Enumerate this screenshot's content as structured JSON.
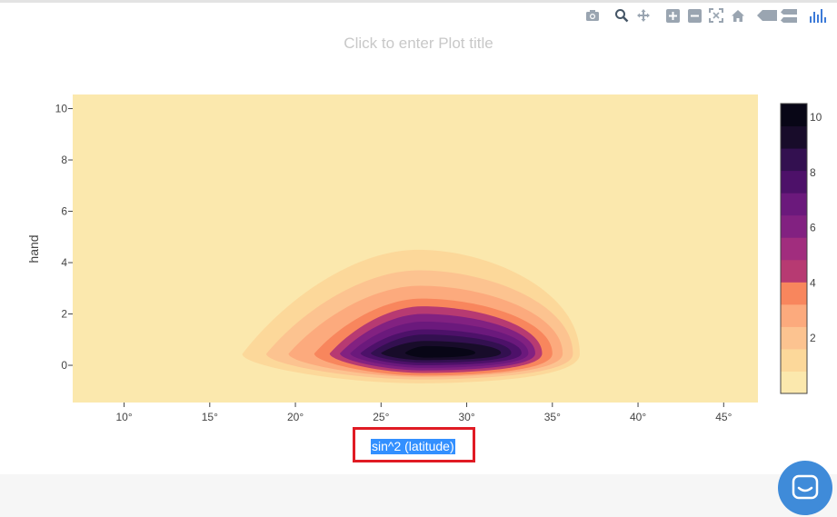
{
  "plot_title_placeholder": "Click to enter Plot title",
  "xaxis_title": "sin^2 (latitude)",
  "modebar": [
    "camera-icon",
    "zoom-icon",
    "pan-icon",
    "zoom-in-icon",
    "zoom-out-icon",
    "autoscale-icon",
    "reset-axes-icon",
    "hover-closest-icon",
    "hover-compare-icon",
    "plotly-logo-icon"
  ],
  "chart_data": {
    "type": "contour",
    "title": "",
    "xlabel": "sin^2 (latitude)",
    "ylabel": "hand",
    "x_tick_labels": [
      "10°",
      "15°",
      "20°",
      "25°",
      "30°",
      "35°",
      "40°",
      "45°"
    ],
    "x_ticks": [
      10,
      15,
      20,
      25,
      30,
      35,
      40,
      45
    ],
    "xlim": [
      7,
      47
    ],
    "y_tick_labels": [
      "0",
      "2",
      "4",
      "6",
      "8",
      "10"
    ],
    "y_ticks": [
      0,
      2,
      4,
      6,
      8,
      10
    ],
    "ylim": [
      -1.45,
      10.55
    ],
    "colorbar": {
      "tick_labels": [
        "2",
        "4",
        "6",
        "8",
        "10"
      ],
      "ticks": [
        2,
        4,
        6,
        8,
        10
      ],
      "range": [
        0,
        10.5
      ],
      "levels": [
        0,
        0.5,
        1,
        1.5,
        2,
        2.5,
        3,
        3.5,
        4,
        4.5,
        5,
        5.5,
        6,
        6.5,
        7,
        7.5,
        8,
        8.5,
        9,
        9.5,
        10
      ],
      "colors": [
        "#fbe8ad",
        "#fcd89a",
        "#fcc390",
        "#fcaa7d",
        "#f8865d",
        "#b73a72",
        "#a12d7e",
        "#822181",
        "#6b197c",
        "#4d1169",
        "#331050",
        "#180c2a",
        "#080616"
      ]
    },
    "peak": {
      "x": 27.7,
      "y": 0.5,
      "z": 10.5
    },
    "contour_levels_drawn": [
      {
        "z": 0.5,
        "color": "#fcd89a",
        "xmin": 16.9,
        "xmax": 36.6,
        "ymin": -0.7,
        "ymax": 4.5
      },
      {
        "z": 1.5,
        "color": "#fcc390",
        "xmin": 18.3,
        "xmax": 36.2,
        "ymin": -0.55,
        "ymax": 3.7
      },
      {
        "z": 2.5,
        "color": "#fcaa7d",
        "xmin": 19.6,
        "xmax": 35.6,
        "ymin": -0.45,
        "ymax": 3.1
      },
      {
        "z": 3.5,
        "color": "#f8865d",
        "xmin": 21.1,
        "xmax": 35.0,
        "ymin": -0.4,
        "ymax": 2.6
      },
      {
        "z": 4.5,
        "color": "#b73a72",
        "xmin": 22.0,
        "xmax": 34.4,
        "ymin": -0.3,
        "ymax": 2.3
      },
      {
        "z": 5.5,
        "color": "#822181",
        "xmin": 22.6,
        "xmax": 34.0,
        "ymin": -0.2,
        "ymax": 2.0
      },
      {
        "z": 6.5,
        "color": "#6b197c",
        "xmin": 23.2,
        "xmax": 33.6,
        "ymin": -0.1,
        "ymax": 1.7
      },
      {
        "z": 7.5,
        "color": "#4d1169",
        "xmin": 23.8,
        "xmax": 33.2,
        "ymin": 0.0,
        "ymax": 1.4
      },
      {
        "z": 8.5,
        "color": "#331050",
        "xmin": 24.4,
        "xmax": 32.6,
        "ymin": 0.1,
        "ymax": 1.2
      },
      {
        "z": 9.5,
        "color": "#180c2a",
        "xmin": 25.0,
        "xmax": 32.0,
        "ymin": 0.2,
        "ymax": 0.95
      },
      {
        "z": 10.2,
        "color": "#080616",
        "xmin": 26.4,
        "xmax": 30.5,
        "ymin": 0.3,
        "ymax": 0.75
      }
    ]
  }
}
